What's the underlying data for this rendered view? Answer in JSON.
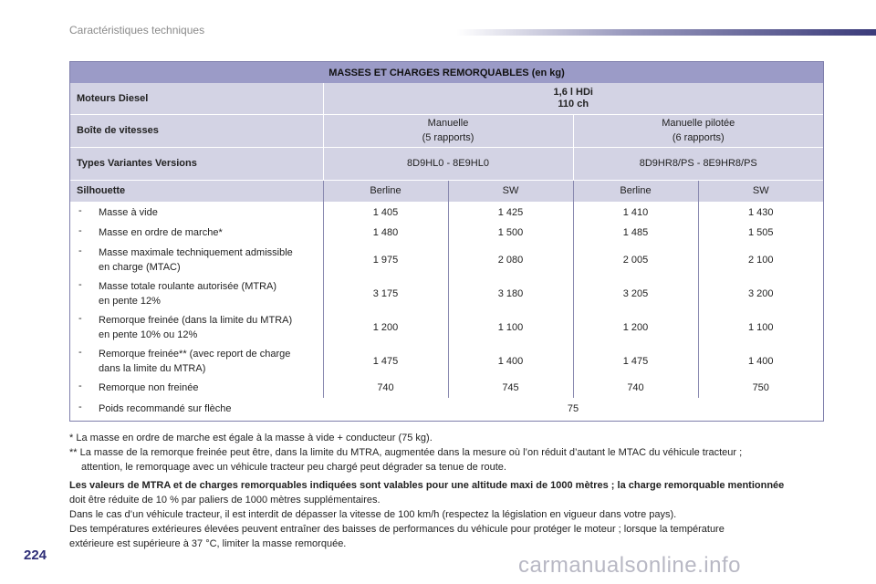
{
  "header": {
    "title": "Caractéristiques techniques"
  },
  "table": {
    "title": "MASSES ET CHARGES REMORQUABLES (en kg)",
    "engine_label": "Moteurs Diesel",
    "engine_line1": "1,6 l HDi",
    "engine_line2": "110 ch",
    "gearbox_label": "Boîte de vitesses",
    "gearbox_manual_line1": "Manuelle",
    "gearbox_manual_line2": "(5 rapports)",
    "gearbox_pilot_line1": "Manuelle pilotée",
    "gearbox_pilot_line2": "(6 rapports)",
    "types_label": "Types Variantes Versions",
    "types_manual": "8D9HL0 - 8E9HL0",
    "types_pilot": "8D9HR8/PS - 8E9HR8/PS",
    "silhouette_label": "Silhouette",
    "silhouettes": [
      "Berline",
      "SW",
      "Berline",
      "SW"
    ],
    "rows": [
      {
        "dash": "-",
        "line1": "Masse à vide",
        "line2": "",
        "values": [
          "1 405",
          "1 425",
          "1 410",
          "1 430"
        ]
      },
      {
        "dash": "-",
        "line1": "Masse en ordre de marche*",
        "line2": "",
        "values": [
          "1 480",
          "1 500",
          "1 485",
          "1 505"
        ]
      },
      {
        "dash": "-",
        "line1": "Masse maximale techniquement admissible",
        "line2": "en charge (MTAC)",
        "values": [
          "1 975",
          "2 080",
          "2 005",
          "2 100"
        ]
      },
      {
        "dash": "-",
        "line1": "Masse totale roulante autorisée (MTRA)",
        "line2": "en pente 12%",
        "values": [
          "3 175",
          "3 180",
          "3 205",
          "3 200"
        ]
      },
      {
        "dash": "-",
        "line1": "Remorque freinée (dans la limite du MTRA)",
        "line2": "en pente 10% ou 12%",
        "values": [
          "1 200",
          "1 100",
          "1 200",
          "1 100"
        ]
      },
      {
        "dash": "-",
        "line1": "Remorque freinée** (avec report de charge",
        "line2": "dans la limite du MTRA)",
        "values": [
          "1 475",
          "1 400",
          "1 475",
          "1 400"
        ]
      },
      {
        "dash": "-",
        "line1": "Remorque non freinée",
        "line2": "",
        "values": [
          "740",
          "745",
          "740",
          "750"
        ]
      }
    ],
    "last_row": {
      "dash": "-",
      "label": "Poids recommandé sur flèche",
      "value": "75"
    }
  },
  "notes": {
    "n1": "* La masse en ordre de marche est égale à la masse à vide + conducteur (75 kg).",
    "n2a": "** La masse de la remorque freinée peut être, dans la limite du MTRA, augmentée dans la mesure où l’on réduit d’autant le MTAC du véhicule tracteur ;",
    "n2b": "attention, le remorquage avec un véhicule tracteur peu chargé peut dégrader sa tenue de route.",
    "bold": "Les valeurs de MTRA et de charges remorquables indiquées sont valables pour une altitude maxi de 1000 mètres ; la charge remorquable mentionnée",
    "p1": "doit être réduite de 10 % par paliers de 1000 mètres supplémentaires.",
    "p2": "Dans le cas d’un véhicule tracteur, il est interdit de dépasser la vitesse de 100 km/h (respectez la législation en vigueur dans votre pays).",
    "p3": "Des températures extérieures élevées peuvent entraîner des baisses de performances du véhicule pour protéger le moteur ; lorsque la température",
    "p4": "extérieure est supérieure à 37 °C, limiter la masse remorquée."
  },
  "footer": {
    "page_number": "224",
    "watermark": "carmanualsonline.info"
  }
}
